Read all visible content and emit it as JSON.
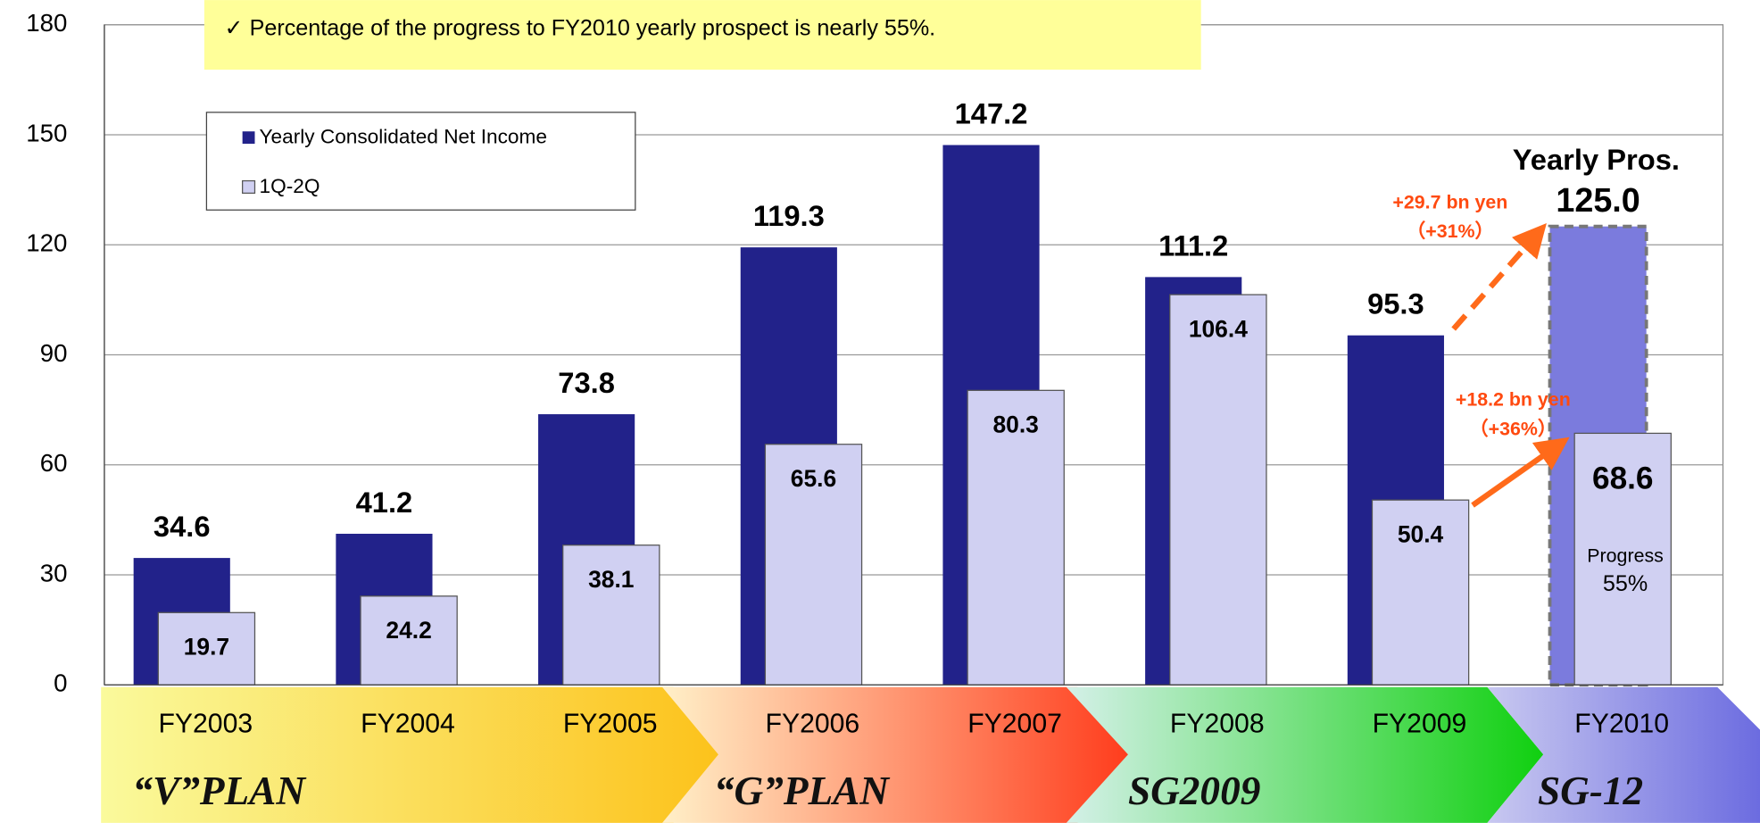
{
  "chart_data": {
    "type": "bar",
    "categories": [
      "FY2003",
      "FY2004",
      "FY2005",
      "FY2006",
      "FY2007",
      "FY2008",
      "FY2009",
      "FY2010"
    ],
    "series": [
      {
        "name": "Yearly Consolidated Net Income",
        "color": "#22228a",
        "colors": [
          "#22228a",
          "#22228a",
          "#22228a",
          "#22228a",
          "#22228a",
          "#22228a",
          "#22228a",
          "#7b7bdd"
        ],
        "values": [
          34.6,
          41.2,
          73.8,
          119.3,
          147.2,
          111.2,
          95.3,
          125
        ],
        "value_labels": [
          "34.6",
          "41.2",
          "73.8",
          "119.3",
          "147.2",
          "111.2",
          "95.3",
          "125.0"
        ]
      },
      {
        "name": "1Q-2Q",
        "color": "#d0d0f2",
        "values": [
          19.7,
          24.2,
          38.1,
          65.6,
          80.3,
          106.4,
          50.4,
          68.6
        ]
      }
    ],
    "ylim": [
      0,
      180
    ],
    "yticks": [
      0,
      30,
      60,
      90,
      120,
      150,
      180
    ],
    "grid": true,
    "annotations": {
      "note": "✓ Percentage of the progress to FY2010 yearly prospect  is nearly 55%.",
      "prospect": "Yearly Pros.",
      "diff_year": "+29.7 bn yen",
      "diff_year_pct": "（+31%）",
      "diff_half": "+18.2 bn yen",
      "diff_half_pct": "（+36%）",
      "progress": "Progress",
      "progress_pct": "55%"
    },
    "plans": [
      "“V”PLAN",
      "“G”PLAN",
      "SG2009",
      "SG-12"
    ]
  }
}
